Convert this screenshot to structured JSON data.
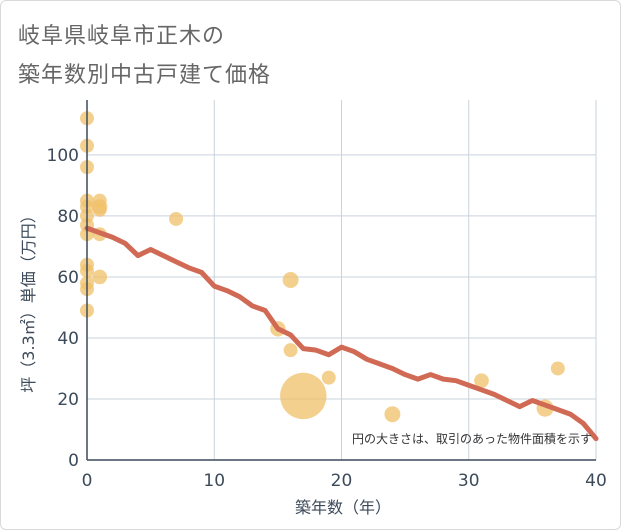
{
  "title_line1": "岐阜県岐阜市正木の",
  "title_line2": "築年数別中古戸建て価格",
  "chart_data": {
    "type": "scatter",
    "xlabel": "築年数（年）",
    "ylabel": "坪（3.3㎡）単価（万円）",
    "xlim": [
      0,
      40
    ],
    "ylim": [
      0,
      118
    ],
    "xticks": [
      0,
      10,
      20,
      30,
      40
    ],
    "yticks": [
      0,
      20,
      40,
      60,
      80,
      100
    ],
    "grid": true,
    "note": "円の大きさは、取引のあった物件面積を示す",
    "colors": {
      "bubble": "#f0c06a",
      "line": "#d06a55",
      "grid": "#c9d3dc",
      "axis": "#3c4a5a"
    },
    "points": [
      {
        "x": 0,
        "y": 112,
        "size": 1
      },
      {
        "x": 0,
        "y": 103,
        "size": 1
      },
      {
        "x": 0,
        "y": 96,
        "size": 1
      },
      {
        "x": 0,
        "y": 85,
        "size": 1
      },
      {
        "x": 0,
        "y": 83,
        "size": 1
      },
      {
        "x": 0,
        "y": 80,
        "size": 1
      },
      {
        "x": 0,
        "y": 77,
        "size": 1
      },
      {
        "x": 0,
        "y": 74,
        "size": 1
      },
      {
        "x": 0,
        "y": 64,
        "size": 1
      },
      {
        "x": 0,
        "y": 62,
        "size": 1
      },
      {
        "x": 0,
        "y": 58,
        "size": 1
      },
      {
        "x": 0,
        "y": 56,
        "size": 1
      },
      {
        "x": 0,
        "y": 49,
        "size": 1
      },
      {
        "x": 1,
        "y": 85,
        "size": 1
      },
      {
        "x": 1,
        "y": 83,
        "size": 1.2
      },
      {
        "x": 1,
        "y": 82,
        "size": 1
      },
      {
        "x": 1,
        "y": 74,
        "size": 1
      },
      {
        "x": 1,
        "y": 60,
        "size": 1.1
      },
      {
        "x": 7,
        "y": 79,
        "size": 1
      },
      {
        "x": 15,
        "y": 43,
        "size": 1.2
      },
      {
        "x": 16,
        "y": 59,
        "size": 1.3
      },
      {
        "x": 16,
        "y": 36,
        "size": 1
      },
      {
        "x": 17,
        "y": 21,
        "size": 11
      },
      {
        "x": 19,
        "y": 27,
        "size": 1
      },
      {
        "x": 24,
        "y": 15,
        "size": 1.3
      },
      {
        "x": 31,
        "y": 26,
        "size": 1.1
      },
      {
        "x": 36,
        "y": 17,
        "size": 1.5
      },
      {
        "x": 37,
        "y": 30,
        "size": 1
      }
    ],
    "trend": {
      "x": [
        0,
        1,
        2,
        3,
        4,
        5,
        6,
        7,
        8,
        9,
        10,
        11,
        12,
        13,
        14,
        15,
        16,
        17,
        18,
        19,
        20,
        21,
        22,
        23,
        24,
        25,
        26,
        27,
        28,
        29,
        30,
        31,
        32,
        33,
        34,
        35,
        36,
        37,
        38,
        39,
        40
      ],
      "y": [
        76,
        74.5,
        73,
        71,
        67,
        69,
        67,
        65,
        63,
        61.5,
        57,
        55.5,
        53.5,
        50.5,
        49,
        43,
        41,
        36.5,
        36,
        34.5,
        37,
        35.5,
        33,
        31.5,
        30,
        28,
        26.5,
        28,
        26.5,
        26,
        24.5,
        23,
        21.5,
        19.5,
        17.5,
        19.5,
        18,
        16.5,
        15,
        12,
        7
      ]
    }
  }
}
